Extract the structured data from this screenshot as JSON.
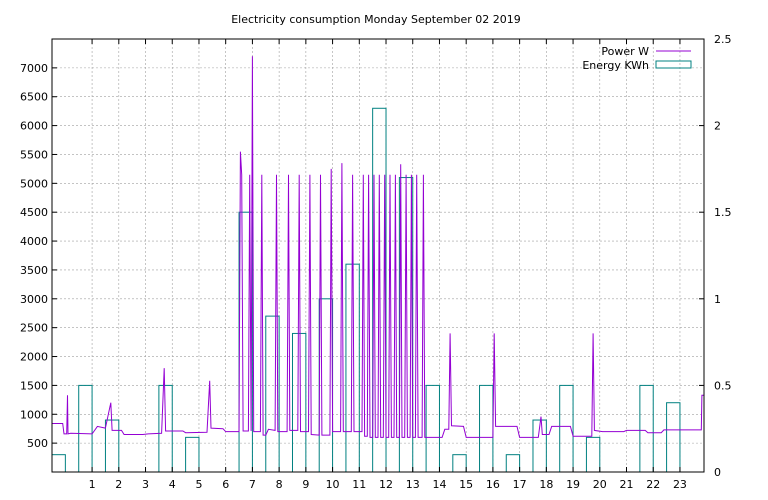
{
  "chart_data": {
    "type": "line",
    "title": "Electricity consumption Monday September 02 2019",
    "xlabel": "",
    "ylabel": "",
    "xlim": [
      0,
      24.4
    ],
    "ylim_left": [
      0,
      7500
    ],
    "ylim_right": [
      0,
      2.5
    ],
    "x_ticks": [
      1,
      2,
      3,
      4,
      5,
      6,
      7,
      8,
      9,
      10,
      11,
      12,
      13,
      14,
      15,
      16,
      17,
      18,
      19,
      20,
      21,
      22,
      23
    ],
    "y_left_ticks": [
      500,
      1000,
      1500,
      2000,
      2500,
      3000,
      3500,
      4000,
      4500,
      5000,
      5500,
      6000,
      6500,
      7000
    ],
    "y_right_ticks": [
      0,
      0.5,
      1,
      1.5,
      2,
      2.5
    ],
    "grid": true,
    "legend_position": "top-right",
    "series": [
      {
        "name": "Power W",
        "axis": "left",
        "color": "#9400d3",
        "style": "line",
        "points": [
          [
            0,
            840
          ],
          [
            0.4,
            840
          ],
          [
            0.45,
            660
          ],
          [
            0.55,
            660
          ],
          [
            0.58,
            1330
          ],
          [
            0.6,
            660
          ],
          [
            0.7,
            670
          ],
          [
            1.5,
            660
          ],
          [
            1.7,
            790
          ],
          [
            2.0,
            760
          ],
          [
            2.2,
            1200
          ],
          [
            2.25,
            720
          ],
          [
            2.6,
            720
          ],
          [
            2.7,
            650
          ],
          [
            3.4,
            650
          ],
          [
            3.6,
            660
          ],
          [
            4.1,
            670
          ],
          [
            4.2,
            1800
          ],
          [
            4.25,
            710
          ],
          [
            4.9,
            710
          ],
          [
            5.0,
            680
          ],
          [
            5.8,
            690
          ],
          [
            5.9,
            1580
          ],
          [
            5.95,
            760
          ],
          [
            6.4,
            750
          ],
          [
            6.5,
            700
          ],
          [
            7.0,
            700
          ],
          [
            7.05,
            5550
          ],
          [
            7.1,
            5150
          ],
          [
            7.15,
            710
          ],
          [
            7.35,
            710
          ],
          [
            7.4,
            5150
          ],
          [
            7.45,
            710
          ],
          [
            7.5,
            7200
          ],
          [
            7.55,
            700
          ],
          [
            7.8,
            700
          ],
          [
            7.85,
            5150
          ],
          [
            7.9,
            640
          ],
          [
            8.0,
            640
          ],
          [
            8.1,
            740
          ],
          [
            8.35,
            720
          ],
          [
            8.4,
            5150
          ],
          [
            8.45,
            700
          ],
          [
            8.8,
            700
          ],
          [
            8.85,
            5150
          ],
          [
            8.9,
            720
          ],
          [
            9.2,
            720
          ],
          [
            9.25,
            5150
          ],
          [
            9.3,
            700
          ],
          [
            9.6,
            700
          ],
          [
            9.65,
            5150
          ],
          [
            9.7,
            650
          ],
          [
            10.0,
            640
          ],
          [
            10.05,
            5150
          ],
          [
            10.1,
            640
          ],
          [
            10.4,
            640
          ],
          [
            10.45,
            5250
          ],
          [
            10.5,
            700
          ],
          [
            10.8,
            700
          ],
          [
            10.85,
            5350
          ],
          [
            10.9,
            700
          ],
          [
            11.2,
            700
          ],
          [
            11.25,
            5150
          ],
          [
            11.3,
            700
          ],
          [
            11.6,
            700
          ],
          [
            11.65,
            5150
          ],
          [
            11.7,
            620
          ],
          [
            11.8,
            620
          ],
          [
            11.85,
            5150
          ],
          [
            11.9,
            600
          ],
          [
            12.0,
            600
          ],
          [
            12.05,
            5150
          ],
          [
            12.1,
            600
          ],
          [
            12.2,
            600
          ],
          [
            12.25,
            5150
          ],
          [
            12.3,
            600
          ],
          [
            12.4,
            600
          ],
          [
            12.45,
            5150
          ],
          [
            12.5,
            600
          ],
          [
            12.6,
            600
          ],
          [
            12.65,
            5150
          ],
          [
            12.7,
            600
          ],
          [
            12.8,
            600
          ],
          [
            12.85,
            5150
          ],
          [
            12.9,
            600
          ],
          [
            13.0,
            600
          ],
          [
            13.05,
            5330
          ],
          [
            13.1,
            600
          ],
          [
            13.2,
            600
          ],
          [
            13.25,
            5150
          ],
          [
            13.3,
            600
          ],
          [
            13.4,
            600
          ],
          [
            13.45,
            5150
          ],
          [
            13.5,
            600
          ],
          [
            13.6,
            600
          ],
          [
            13.65,
            5150
          ],
          [
            13.7,
            600
          ],
          [
            13.85,
            600
          ],
          [
            13.9,
            5150
          ],
          [
            13.95,
            600
          ],
          [
            14.6,
            600
          ],
          [
            14.7,
            740
          ],
          [
            14.85,
            740
          ],
          [
            14.9,
            2400
          ],
          [
            14.95,
            800
          ],
          [
            15.4,
            790
          ],
          [
            15.5,
            600
          ],
          [
            16.5,
            600
          ],
          [
            16.55,
            2400
          ],
          [
            16.6,
            790
          ],
          [
            17.4,
            790
          ],
          [
            17.5,
            600
          ],
          [
            18.2,
            600
          ],
          [
            18.3,
            960
          ],
          [
            18.35,
            650
          ],
          [
            18.6,
            650
          ],
          [
            18.7,
            790
          ],
          [
            19.4,
            790
          ],
          [
            19.5,
            620
          ],
          [
            20.2,
            620
          ],
          [
            20.25,
            2400
          ],
          [
            20.3,
            720
          ],
          [
            20.6,
            700
          ],
          [
            21.4,
            700
          ],
          [
            21.5,
            720
          ],
          [
            22.2,
            720
          ],
          [
            22.3,
            680
          ],
          [
            22.8,
            680
          ],
          [
            22.9,
            730
          ],
          [
            24.3,
            730
          ],
          [
            24.32,
            1330
          ],
          [
            24.4,
            1330
          ]
        ]
      },
      {
        "name": "Energy KWh",
        "axis": "right",
        "color": "#008080",
        "style": "step-bars",
        "bars": [
          [
            0,
            0.1
          ],
          [
            1,
            0.5
          ],
          [
            2,
            0.3
          ],
          [
            3,
            0
          ],
          [
            4,
            0.5
          ],
          [
            5,
            0.2
          ],
          [
            6,
            0
          ],
          [
            7,
            1.5
          ],
          [
            8,
            0.9
          ],
          [
            9,
            0.8
          ],
          [
            10,
            1.0
          ],
          [
            11,
            1.2
          ],
          [
            12,
            2.1
          ],
          [
            13,
            1.7
          ],
          [
            14,
            0.5
          ],
          [
            15,
            0.1
          ],
          [
            16,
            0.5
          ],
          [
            17,
            0.1
          ],
          [
            18,
            0.3
          ],
          [
            19,
            0.5
          ],
          [
            20,
            0.2
          ],
          [
            21,
            0
          ],
          [
            22,
            0.5
          ],
          [
            23,
            0.4
          ]
        ]
      }
    ]
  }
}
